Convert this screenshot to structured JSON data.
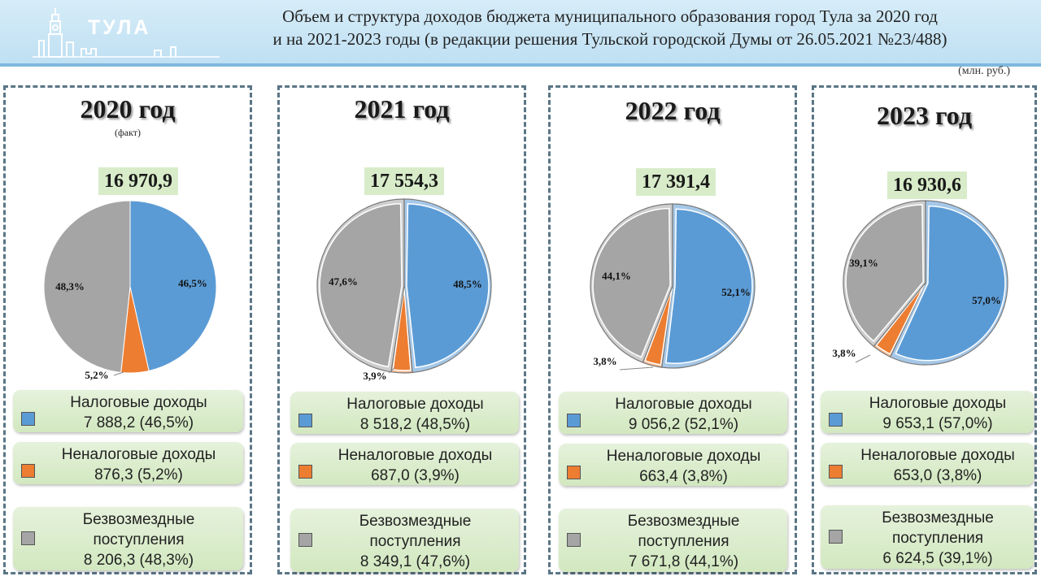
{
  "header": {
    "logo_text": "ТУЛА",
    "title_line1": "Объем и структура доходов бюджета муниципального образования город Тула за 2020 год",
    "title_line2": "и на 2021-2023 годы (в редакции решения Тульской городской Думы от 26.05.2021 №23/488)"
  },
  "units": "(млн. руб.)",
  "colors": {
    "tax": "#5b9bd5",
    "nontax": "#ed7d31",
    "grants": "#a5a5a5",
    "total_bg": "#d8ecc9",
    "legend_bg": "#d8ebc8"
  },
  "chart_data": [
    {
      "type": "pie",
      "title": "2020 год",
      "subtitle": "(факт)",
      "total": "16 970,9",
      "slices": [
        {
          "category": "tax",
          "value": 46.5,
          "label": "46,5%"
        },
        {
          "category": "nontax",
          "value": 5.2,
          "label": "5,2%"
        },
        {
          "category": "grants",
          "value": 48.3,
          "label": "48,3%"
        }
      ],
      "legend": [
        {
          "category": "tax",
          "name": "Налоговые доходы",
          "amount": "7 888,2 (46,5%)"
        },
        {
          "category": "nontax",
          "name": "Неналоговые доходы",
          "amount": "876,3 (5,2%)"
        },
        {
          "category": "grants",
          "name1": "Безвозмездные",
          "name2": "поступления",
          "amount": "8 206,3 (48,3%)"
        }
      ]
    },
    {
      "type": "pie",
      "title": "2021 год",
      "total": "17 554,3",
      "slices": [
        {
          "category": "tax",
          "value": 48.5,
          "label": "48,5%"
        },
        {
          "category": "nontax",
          "value": 3.9,
          "label": "3,9%"
        },
        {
          "category": "grants",
          "value": 47.6,
          "label": "47,6%"
        }
      ],
      "legend": [
        {
          "category": "tax",
          "name": "Налоговые доходы",
          "amount": "8 518,2 (48,5%)"
        },
        {
          "category": "nontax",
          "name": "Неналоговые доходы",
          "amount": "687,0 (3,9%)"
        },
        {
          "category": "grants",
          "name1": "Безвозмездные",
          "name2": "поступления",
          "amount": "8 349,1 (47,6%)"
        }
      ]
    },
    {
      "type": "pie",
      "title": "2022 год",
      "total": "17 391,4",
      "slices": [
        {
          "category": "tax",
          "value": 52.1,
          "label": "52,1%"
        },
        {
          "category": "nontax",
          "value": 3.8,
          "label": "3,8%"
        },
        {
          "category": "grants",
          "value": 44.1,
          "label": "44,1%"
        }
      ],
      "legend": [
        {
          "category": "tax",
          "name": "Налоговые доходы",
          "amount": "9 056,2 (52,1%)"
        },
        {
          "category": "nontax",
          "name": "Неналоговые доходы",
          "amount": "663,4 (3,8%)"
        },
        {
          "category": "grants",
          "name1": "Безвозмездные",
          "name2": "поступления",
          "amount": "7 671,8 (44,1%)"
        }
      ]
    },
    {
      "type": "pie",
      "title": "2023 год",
      "total": "16 930,6",
      "slices": [
        {
          "category": "tax",
          "value": 57.0,
          "label": "57,0%"
        },
        {
          "category": "nontax",
          "value": 3.8,
          "label": "3,8%"
        },
        {
          "category": "grants",
          "value": 39.1,
          "label": "39,1%"
        }
      ],
      "legend": [
        {
          "category": "tax",
          "name": "Налоговые доходы",
          "amount": "9 653,1 (57,0%)"
        },
        {
          "category": "nontax",
          "name": "Неналоговые доходы",
          "amount": "653,0 (3,8%)"
        },
        {
          "category": "grants",
          "name1": "Безвозмездные",
          "name2": "поступления",
          "amount": "6 624,5 (39,1%)"
        }
      ]
    }
  ]
}
